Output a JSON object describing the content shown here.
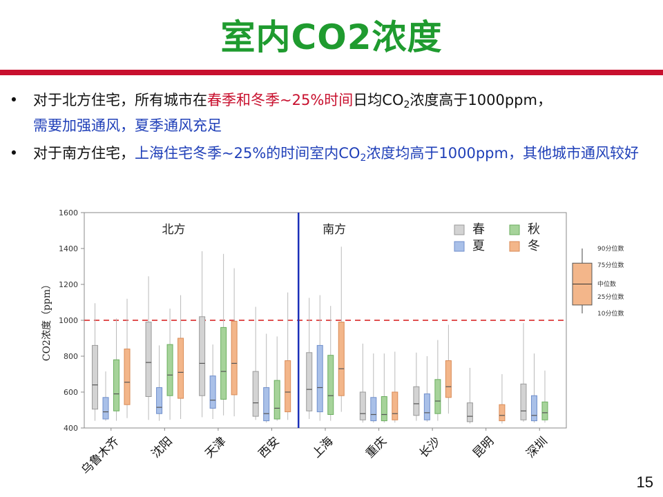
{
  "slide": {
    "title": "室内CO2浓度",
    "page_number": "15",
    "bullets": [
      {
        "segments": [
          {
            "text": "对于北方住宅，所有城市在",
            "style": "normal"
          },
          {
            "text": "春季和冬季~25%时间",
            "style": "red"
          },
          {
            "text": "日均CO",
            "style": "normal"
          },
          {
            "text": "2",
            "style": "sub"
          },
          {
            "text": "浓度高于1000ppm，",
            "style": "normal"
          },
          {
            "text": "需要加强通风，夏季通风充足",
            "style": "blue"
          }
        ]
      },
      {
        "segments": [
          {
            "text": "对于南方住宅，",
            "style": "normal"
          },
          {
            "text": "上海住宅冬季~25%的时间室内CO",
            "style": "blue"
          },
          {
            "text": "2",
            "style": "sub-blue"
          },
          {
            "text": "浓度均高于1000ppm，其他城市通风较好",
            "style": "blue"
          }
        ]
      }
    ],
    "bullet_symbol": "•"
  },
  "chart_data": {
    "type": "boxplot",
    "ylabel": "CO2浓度（ppm）",
    "ylim": [
      400,
      1600
    ],
    "yticks": [
      400,
      600,
      800,
      1000,
      1200,
      1400,
      1600
    ],
    "reference_line": {
      "value": 1000,
      "style": "dashed",
      "color": "#e05050"
    },
    "regions": [
      {
        "label": "北方",
        "cities": [
          "乌鲁木齐",
          "沈阳",
          "天津",
          "西安"
        ]
      },
      {
        "label": "南方",
        "cities": [
          "上海",
          "重庆",
          "长沙",
          "昆明",
          "深圳"
        ]
      }
    ],
    "categories": [
      "乌鲁木齐",
      "沈阳",
      "天津",
      "西安",
      "上海",
      "重庆",
      "长沙",
      "昆明",
      "深圳"
    ],
    "series": [
      {
        "name": "春",
        "color": "#d3d3d3",
        "stroke": "#9a9a9a",
        "boxes": [
          {
            "p10": 440,
            "q1": 505,
            "median": 640,
            "q3": 860,
            "p90": 1095
          },
          {
            "p10": 445,
            "q1": 575,
            "median": 765,
            "q3": 990,
            "p90": 1245
          },
          {
            "p10": 460,
            "q1": 580,
            "median": 760,
            "q3": 1020,
            "p90": 1385
          },
          {
            "p10": 445,
            "q1": 465,
            "median": 540,
            "q3": 715,
            "p90": 1075
          },
          {
            "p10": 450,
            "q1": 495,
            "median": 615,
            "q3": 820,
            "p90": 1125
          },
          {
            "p10": 430,
            "q1": 445,
            "median": 480,
            "q3": 600,
            "p90": 870
          },
          {
            "p10": 440,
            "q1": 470,
            "median": 535,
            "q3": 630,
            "p90": 820
          },
          {
            "p10": 425,
            "q1": 435,
            "median": 465,
            "q3": 540,
            "p90": 735
          },
          {
            "p10": 435,
            "q1": 445,
            "median": 495,
            "q3": 645,
            "p90": 985
          }
        ]
      },
      {
        "name": "夏",
        "color": "#a9c0e8",
        "stroke": "#6f8ecb",
        "boxes": [
          {
            "p10": 440,
            "q1": 450,
            "median": 490,
            "q3": 570,
            "p90": 715
          },
          {
            "p10": 440,
            "q1": 480,
            "median": 515,
            "q3": 625,
            "p90": 860
          },
          {
            "p10": 450,
            "q1": 510,
            "median": 555,
            "q3": 690,
            "p90": 865
          },
          {
            "p10": 430,
            "q1": 440,
            "median": 480,
            "q3": 625,
            "p90": 925
          },
          {
            "p10": 440,
            "q1": 490,
            "median": 625,
            "q3": 860,
            "p90": 1140
          },
          {
            "p10": 430,
            "q1": 440,
            "median": 475,
            "q3": 570,
            "p90": 815
          },
          {
            "p10": 435,
            "q1": 445,
            "median": 485,
            "q3": 590,
            "p90": 800
          },
          null,
          {
            "p10": 430,
            "q1": 440,
            "median": 470,
            "q3": 580,
            "p90": 815
          }
        ]
      },
      {
        "name": "秋",
        "color": "#a6d39a",
        "stroke": "#6aae5e",
        "boxes": [
          {
            "p10": 440,
            "q1": 495,
            "median": 590,
            "q3": 780,
            "p90": 1010
          },
          {
            "p10": 445,
            "q1": 580,
            "median": 695,
            "q3": 865,
            "p90": 1065
          },
          {
            "p10": 470,
            "q1": 560,
            "median": 715,
            "q3": 960,
            "p90": 1370
          },
          {
            "p10": 440,
            "q1": 450,
            "median": 510,
            "q3": 665,
            "p90": 910
          },
          {
            "p10": 440,
            "q1": 475,
            "median": 580,
            "q3": 805,
            "p90": 1080
          },
          {
            "p10": 430,
            "q1": 440,
            "median": 475,
            "q3": 575,
            "p90": 815
          },
          {
            "p10": 440,
            "q1": 480,
            "median": 550,
            "q3": 670,
            "p90": 890
          },
          null,
          {
            "p10": 430,
            "q1": 445,
            "median": 485,
            "q3": 545,
            "p90": 720
          }
        ]
      },
      {
        "name": "冬",
        "color": "#f3b68a",
        "stroke": "#d98a55",
        "boxes": [
          {
            "p10": 455,
            "q1": 530,
            "median": 655,
            "q3": 840,
            "p90": 1120
          },
          {
            "p10": 450,
            "q1": 565,
            "median": 710,
            "q3": 900,
            "p90": 1140
          },
          {
            "p10": 465,
            "q1": 585,
            "median": 760,
            "q3": 995,
            "p90": 1290
          },
          {
            "p10": 445,
            "q1": 490,
            "median": 600,
            "q3": 775,
            "p90": 1155
          },
          {
            "p10": 490,
            "q1": 580,
            "median": 730,
            "q3": 990,
            "p90": 1410
          },
          {
            "p10": 430,
            "q1": 445,
            "median": 480,
            "q3": 600,
            "p90": 825
          },
          {
            "p10": 480,
            "q1": 570,
            "median": 630,
            "q3": 775,
            "p90": 975
          },
          {
            "p10": 425,
            "q1": 440,
            "median": 470,
            "q3": 530,
            "p90": 700
          },
          null
        ]
      }
    ],
    "legend": {
      "placement": "top-right",
      "columns": 2
    },
    "annotation_legend": {
      "labels": [
        "90分位数",
        "75分位数",
        "中位数",
        "25分位数",
        "10分位数"
      ],
      "example": {
        "p10": 450,
        "q1": 470,
        "median": 520,
        "q3": 570,
        "p90": 605
      },
      "color": "#f3b68a"
    }
  }
}
